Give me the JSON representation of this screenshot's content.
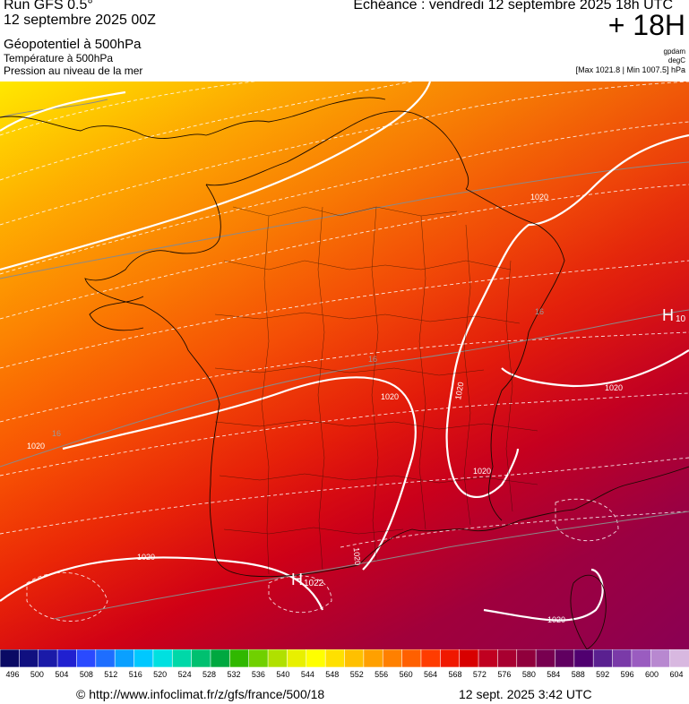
{
  "header": {
    "run": "Run GFS 0.5°",
    "run_date": "12 septembre 2025 00Z",
    "field_main": "Géopotentiel à 500hPa",
    "field_temp": "Température à 500hPa",
    "field_pressure": "Pression au niveau de la mer",
    "echeance": "Echéance : vendredi 12 septembre 2025 18h UTC",
    "forecast_hour": "+ 18H",
    "unit_geopotential": "gpdam",
    "unit_temperature": "degC",
    "min_max": "[Max 1021.8 | Min 1007.5] hPa"
  },
  "map_labels": {
    "isobars": [
      "1020",
      "1020",
      "1020",
      "1020",
      "1020",
      "1020",
      "1020",
      "1020",
      "1020"
    ],
    "isotherms": [
      "16",
      "16",
      "16"
    ],
    "highs": [
      {
        "letter": "H",
        "value": "1022"
      },
      {
        "letter": "H",
        "value": "10"
      }
    ]
  },
  "colorbar": {
    "labels": [
      "496",
      "500",
      "504",
      "508",
      "512",
      "516",
      "520",
      "524",
      "528",
      "532",
      "536",
      "540",
      "544",
      "548",
      "552",
      "556",
      "560",
      "564",
      "568",
      "572",
      "576",
      "580",
      "584",
      "588",
      "592",
      "596",
      "600",
      "604"
    ],
    "colors": [
      "#0a0a64",
      "#101080",
      "#1a1aa8",
      "#2020d0",
      "#2a4aff",
      "#1e6eff",
      "#0aa0ff",
      "#00c8ff",
      "#00e0e0",
      "#00d8a8",
      "#00c070",
      "#00a840",
      "#30b800",
      "#70d000",
      "#b0e000",
      "#e8f000",
      "#ffff00",
      "#ffe000",
      "#ffc000",
      "#ffa000",
      "#ff8000",
      "#ff6000",
      "#ff3c00",
      "#f01800",
      "#d80000",
      "#c00020",
      "#a80030",
      "#90003c",
      "#780050",
      "#600060",
      "#500070",
      "#5a2090",
      "#7a3aa8",
      "#9a5cc0",
      "#b888d0",
      "#d8b8e0"
    ]
  },
  "footer": {
    "url": "© http://www.infoclimat.fr/z/gfs/france/500/18",
    "timestamp": "12 sept. 2025  3:42 UTC"
  }
}
